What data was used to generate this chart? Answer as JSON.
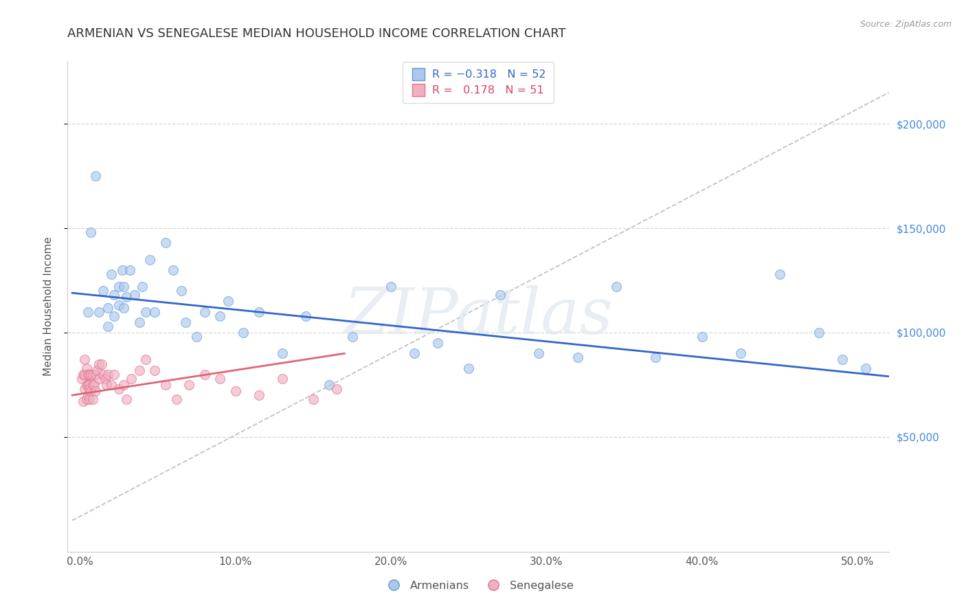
{
  "title": "ARMENIAN VS SENEGALESE MEDIAN HOUSEHOLD INCOME CORRELATION CHART",
  "source": "Source: ZipAtlas.com",
  "xlabel_ticks": [
    "0.0%",
    "10.0%",
    "20.0%",
    "30.0%",
    "40.0%",
    "50.0%"
  ],
  "xlabel_vals": [
    0.0,
    0.1,
    0.2,
    0.3,
    0.4,
    0.5
  ],
  "ylabel": "Median Household Income",
  "yticks": [
    50000,
    100000,
    150000,
    200000
  ],
  "ytick_labels": [
    "$50,000",
    "$100,000",
    "$150,000",
    "$200,000"
  ],
  "ylim": [
    -5000,
    230000
  ],
  "xlim": [
    -0.008,
    0.52
  ],
  "watermark": "ZIPatlas",
  "armenian_color_fill": "#aac8f0",
  "armenian_color_edge": "#6699cc",
  "senegalese_color_fill": "#f0b0c0",
  "senegalese_color_edge": "#e07090",
  "trend_armenian_color": "#3366cc",
  "trend_senegalese_color": "#dd6677",
  "trend_dashed_color": "#bbbbbb",
  "bg_color": "#ffffff",
  "grid_color": "#cccccc",
  "title_fontsize": 13,
  "axis_label_fontsize": 11,
  "tick_fontsize": 11,
  "scatter_size": 100,
  "scatter_alpha": 0.65,
  "scatter_linewidth": 0.8,
  "armenian_x": [
    0.005,
    0.007,
    0.01,
    0.012,
    0.015,
    0.018,
    0.018,
    0.02,
    0.022,
    0.022,
    0.025,
    0.025,
    0.027,
    0.028,
    0.028,
    0.03,
    0.032,
    0.035,
    0.038,
    0.04,
    0.042,
    0.045,
    0.048,
    0.055,
    0.06,
    0.065,
    0.068,
    0.075,
    0.08,
    0.09,
    0.095,
    0.105,
    0.115,
    0.13,
    0.145,
    0.16,
    0.175,
    0.2,
    0.215,
    0.23,
    0.25,
    0.27,
    0.295,
    0.32,
    0.345,
    0.37,
    0.4,
    0.425,
    0.45,
    0.475,
    0.49,
    0.505
  ],
  "armenian_y": [
    110000,
    148000,
    175000,
    110000,
    120000,
    103000,
    112000,
    128000,
    118000,
    108000,
    122000,
    113000,
    130000,
    112000,
    122000,
    117000,
    130000,
    118000,
    105000,
    122000,
    110000,
    135000,
    110000,
    143000,
    130000,
    120000,
    105000,
    98000,
    110000,
    108000,
    115000,
    100000,
    110000,
    90000,
    108000,
    75000,
    98000,
    122000,
    90000,
    95000,
    83000,
    118000,
    90000,
    88000,
    122000,
    88000,
    98000,
    90000,
    128000,
    100000,
    87000,
    83000
  ],
  "senegalese_x": [
    0.001,
    0.002,
    0.002,
    0.003,
    0.003,
    0.003,
    0.004,
    0.004,
    0.004,
    0.005,
    0.005,
    0.005,
    0.006,
    0.006,
    0.006,
    0.006,
    0.007,
    0.007,
    0.008,
    0.008,
    0.008,
    0.009,
    0.01,
    0.01,
    0.011,
    0.012,
    0.012,
    0.014,
    0.015,
    0.016,
    0.017,
    0.018,
    0.02,
    0.022,
    0.025,
    0.028,
    0.03,
    0.033,
    0.038,
    0.042,
    0.048,
    0.055,
    0.062,
    0.07,
    0.08,
    0.09,
    0.1,
    0.115,
    0.13,
    0.15,
    0.165
  ],
  "senegalese_y": [
    78000,
    67000,
    80000,
    73000,
    80000,
    87000,
    75000,
    68000,
    83000,
    75000,
    70000,
    80000,
    75000,
    68000,
    80000,
    73000,
    80000,
    72000,
    80000,
    75000,
    68000,
    75000,
    80000,
    72000,
    82000,
    85000,
    78000,
    85000,
    80000,
    78000,
    75000,
    80000,
    75000,
    80000,
    73000,
    75000,
    68000,
    78000,
    82000,
    87000,
    82000,
    75000,
    68000,
    75000,
    80000,
    78000,
    72000,
    70000,
    78000,
    68000,
    73000
  ],
  "armenian_trend_x0": -0.005,
  "armenian_trend_x1": 0.52,
  "armenian_trend_y0": 119000,
  "armenian_trend_y1": 79000,
  "senegalese_trend_x0": -0.005,
  "senegalese_trend_x1": 0.17,
  "senegalese_trend_y0": 70000,
  "senegalese_trend_y1": 90000,
  "dashed_trend_x0": -0.005,
  "dashed_trend_x1": 0.52,
  "dashed_trend_y0": 10000,
  "dashed_trend_y1": 215000
}
